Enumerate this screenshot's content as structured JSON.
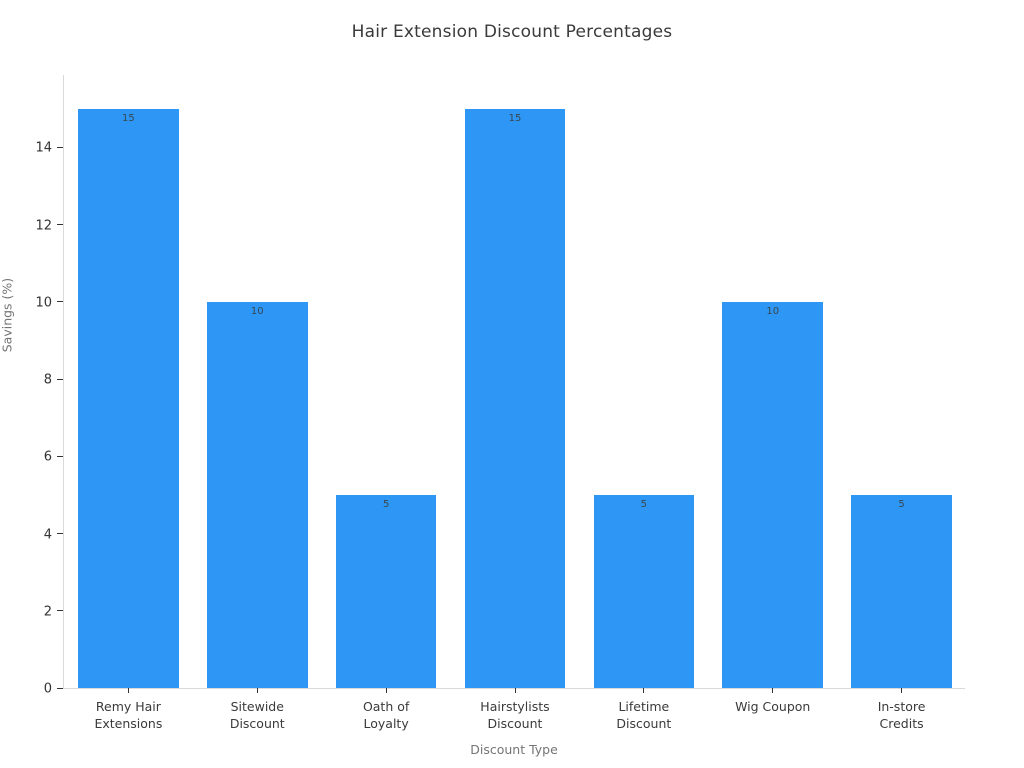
{
  "chart_data": {
    "type": "bar",
    "title": "Hair Extension Discount Percentages",
    "xlabel": "Discount Type",
    "ylabel": "Savings (%)",
    "categories": [
      "Remy Hair\nExtensions",
      "Sitewide\nDiscount",
      "Oath of\nLoyalty",
      "Hairstylists\nDiscount",
      "Lifetime\nDiscount",
      "Wig Coupon",
      "In-store\nCredits"
    ],
    "values": [
      15,
      10,
      5,
      15,
      5,
      10,
      5
    ],
    "value_labels": [
      "15",
      "10",
      "5",
      "15",
      "5",
      "10",
      "5"
    ],
    "yticks": [
      0,
      2,
      4,
      6,
      8,
      10,
      12,
      14
    ],
    "ylim": [
      0,
      15.9
    ],
    "grid": false,
    "legend_position": "none",
    "bar_color": "#2e96f5",
    "value_label_color": "#37474f",
    "bar_width_ratio": 0.78
  }
}
